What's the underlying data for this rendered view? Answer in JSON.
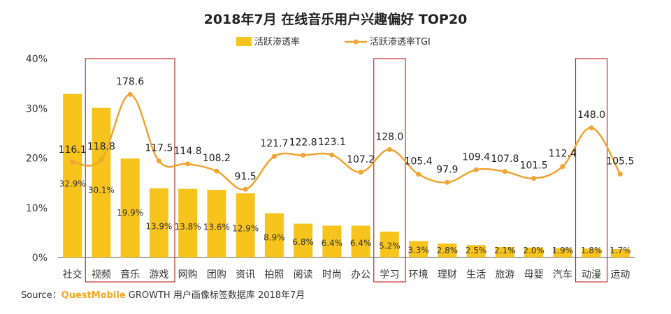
{
  "chart_data": {
    "type": "bar",
    "title": "2018年7月 在线音乐用户兴趣偏好 TOP20",
    "categories": [
      "社交",
      "视频",
      "音乐",
      "游戏",
      "网购",
      "团购",
      "资讯",
      "拍照",
      "阅读",
      "时尚",
      "办公",
      "学习",
      "环境",
      "理财",
      "生活",
      "旅游",
      "母婴",
      "汽车",
      "动漫",
      "运动"
    ],
    "series": [
      {
        "name": "活跃渗透率",
        "kind": "bar",
        "values": [
          32.9,
          30.1,
          19.9,
          13.9,
          13.8,
          13.6,
          12.9,
          8.9,
          6.8,
          6.4,
          6.4,
          5.2,
          3.3,
          2.8,
          2.5,
          2.1,
          2.0,
          1.9,
          1.8,
          1.7
        ],
        "labels": [
          "32.9%",
          "30.1%",
          "19.9%",
          "13.9%",
          "13.8%",
          "13.6%",
          "12.9%",
          "8.9%",
          "6.8%",
          "6.4%",
          "6.4%",
          "5.2%",
          "3.3%",
          "2.8%",
          "2.5%",
          "2.1%",
          "2.0%",
          "1.9%",
          "1.8%",
          "1.7%"
        ]
      },
      {
        "name": "活跃渗透率TGI",
        "kind": "line",
        "values": [
          116.1,
          118.8,
          178.6,
          117.5,
          114.8,
          108.2,
          91.5,
          121.7,
          122.8,
          123.1,
          107.2,
          128.0,
          105.4,
          97.9,
          109.4,
          107.8,
          101.5,
          112.4,
          148.0,
          105.5
        ]
      }
    ],
    "y_axis": {
      "ylim": [
        0,
        40
      ],
      "ticks": [
        "0%",
        "10%",
        "20%",
        "30%",
        "40%"
      ]
    },
    "highlighted_categories": [
      "视频",
      "音乐",
      "游戏",
      "学习",
      "动漫"
    ],
    "legend_position": "top-center",
    "grid": false
  },
  "source": {
    "prefix": "Source：",
    "brand": "QuestMobile",
    "text": " GROWTH 用户画像标签数据库 2018年7月"
  },
  "colors": {
    "bar": "#f7c41d",
    "line": "#f0a431",
    "highlight_box": "#c0302b",
    "axis": "#555555",
    "brand": "#f5a623"
  }
}
